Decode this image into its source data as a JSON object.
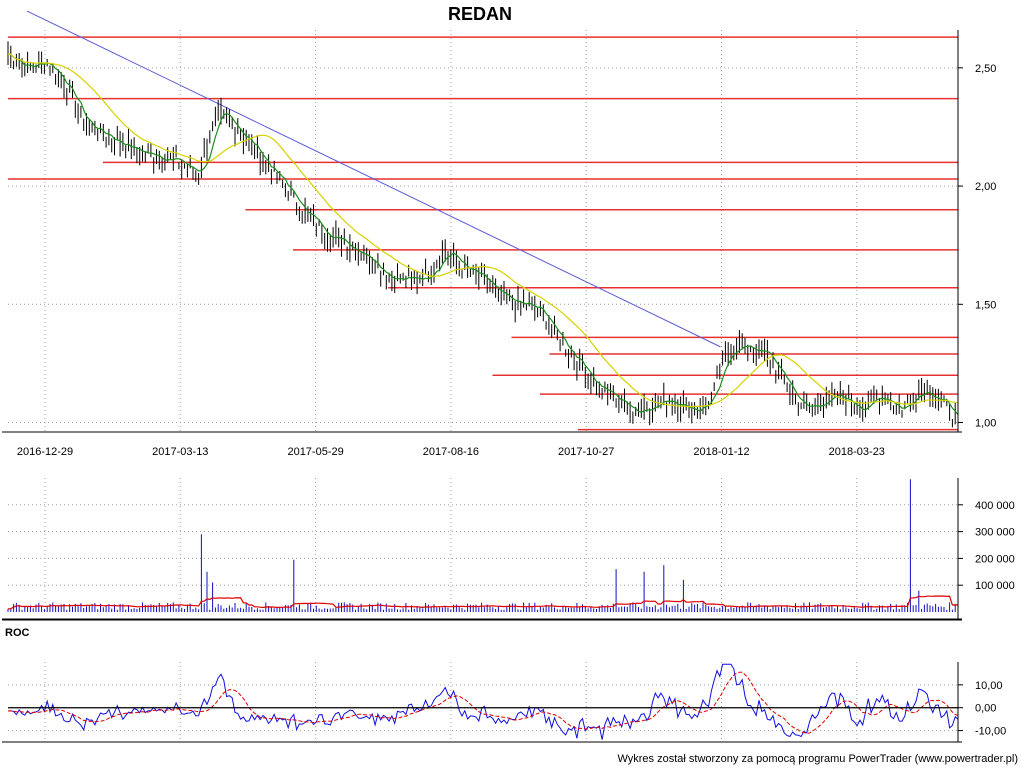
{
  "chart_data": {
    "type": "line",
    "title": "REDAN",
    "credit": "Wykres został stworzony za pomocą programu PowerTrader (www.powertrader.pl)",
    "colors": {
      "price": "#000000",
      "ma_short": "#1a8f1a",
      "ma_long": "#d8d200",
      "levels": "#e83030",
      "trendline": "#5a5ad8",
      "volume": "#1010c0",
      "volume_avg": "#e00000",
      "roc": "#1010e0",
      "roc_signal": "#e00000",
      "grid": "#a0a0a0"
    },
    "x_labels": [
      "2016-12-29",
      "2017-03-13",
      "2017-05-29",
      "2017-08-16",
      "2017-10-27",
      "2018-01-12",
      "2018-03-23"
    ],
    "price_panel": {
      "ylim": [
        0.96,
        2.66
      ],
      "y_ticks": [
        {
          "value": 2.5,
          "label": "2,50"
        },
        {
          "value": 2.0,
          "label": "2,00"
        },
        {
          "value": 1.5,
          "label": "1,50"
        },
        {
          "value": 1.0,
          "label": "1,00"
        }
      ],
      "close_points": [
        [
          0,
          2.56
        ],
        [
          0.02,
          2.5
        ],
        [
          0.04,
          2.53
        ],
        [
          0.06,
          2.43
        ],
        [
          0.08,
          2.27
        ],
        [
          0.1,
          2.22
        ],
        [
          0.12,
          2.18
        ],
        [
          0.14,
          2.14
        ],
        [
          0.16,
          2.13
        ],
        [
          0.18,
          2.1
        ],
        [
          0.2,
          2.05
        ],
        [
          0.22,
          2.3
        ],
        [
          0.24,
          2.25
        ],
        [
          0.26,
          2.15
        ],
        [
          0.28,
          2.05
        ],
        [
          0.3,
          1.95
        ],
        [
          0.32,
          1.85
        ],
        [
          0.34,
          1.79
        ],
        [
          0.36,
          1.75
        ],
        [
          0.38,
          1.7
        ],
        [
          0.4,
          1.62
        ],
        [
          0.42,
          1.6
        ],
        [
          0.44,
          1.62
        ],
        [
          0.46,
          1.73
        ],
        [
          0.48,
          1.65
        ],
        [
          0.5,
          1.6
        ],
        [
          0.52,
          1.52
        ],
        [
          0.54,
          1.5
        ],
        [
          0.56,
          1.47
        ],
        [
          0.58,
          1.35
        ],
        [
          0.6,
          1.26
        ],
        [
          0.62,
          1.15
        ],
        [
          0.64,
          1.1
        ],
        [
          0.66,
          1.05
        ],
        [
          0.68,
          1.08
        ],
        [
          0.7,
          1.1
        ],
        [
          0.72,
          1.05
        ],
        [
          0.74,
          1.1
        ],
        [
          0.76,
          1.32
        ],
        [
          0.78,
          1.32
        ],
        [
          0.8,
          1.28
        ],
        [
          0.82,
          1.15
        ],
        [
          0.84,
          1.05
        ],
        [
          0.86,
          1.1
        ],
        [
          0.88,
          1.1
        ],
        [
          0.9,
          1.06
        ],
        [
          0.92,
          1.12
        ],
        [
          0.94,
          1.05
        ],
        [
          0.96,
          1.15
        ],
        [
          0.98,
          1.1
        ],
        [
          1.0,
          1.0
        ]
      ],
      "levels": [
        {
          "value": 2.63,
          "from": 0.0
        },
        {
          "value": 2.37,
          "from": 0.0
        },
        {
          "value": 2.1,
          "from": 0.1
        },
        {
          "value": 2.03,
          "from": 0.0
        },
        {
          "value": 1.9,
          "from": 0.25
        },
        {
          "value": 1.73,
          "from": 0.3
        },
        {
          "value": 1.57,
          "from": 0.4
        },
        {
          "value": 1.36,
          "from": 0.53
        },
        {
          "value": 1.29,
          "from": 0.57
        },
        {
          "value": 1.2,
          "from": 0.51
        },
        {
          "value": 1.12,
          "from": 0.56
        },
        {
          "value": 0.97,
          "from": 0.6
        }
      ],
      "trendline": {
        "from": [
          0.02,
          2.74
        ],
        "to": [
          0.75,
          1.32
        ]
      }
    },
    "volume_panel": {
      "ylim": [
        0,
        500000
      ],
      "y_ticks": [
        {
          "value": 400000,
          "label": "400 000"
        },
        {
          "value": 300000,
          "label": "300 000"
        },
        {
          "value": 200000,
          "label": "200 000"
        },
        {
          "value": 100000,
          "label": "100 000"
        }
      ],
      "spikes": [
        {
          "x": 0.205,
          "value": 290000
        },
        {
          "x": 0.21,
          "value": 150000
        },
        {
          "x": 0.215,
          "value": 110000
        },
        {
          "x": 0.3,
          "value": 195000
        },
        {
          "x": 0.64,
          "value": 160000
        },
        {
          "x": 0.67,
          "value": 150000
        },
        {
          "x": 0.69,
          "value": 175000
        },
        {
          "x": 0.71,
          "value": 120000
        },
        {
          "x": 0.95,
          "value": 495000
        },
        {
          "x": 0.96,
          "value": 80000
        }
      ]
    },
    "roc_panel": {
      "label": "ROC",
      "ylim": [
        -15,
        20
      ],
      "y_ticks": [
        {
          "value": 10,
          "label": "10,00"
        },
        {
          "value": 0,
          "label": "0,00"
        },
        {
          "value": -10,
          "label": "-10,00"
        }
      ]
    }
  }
}
